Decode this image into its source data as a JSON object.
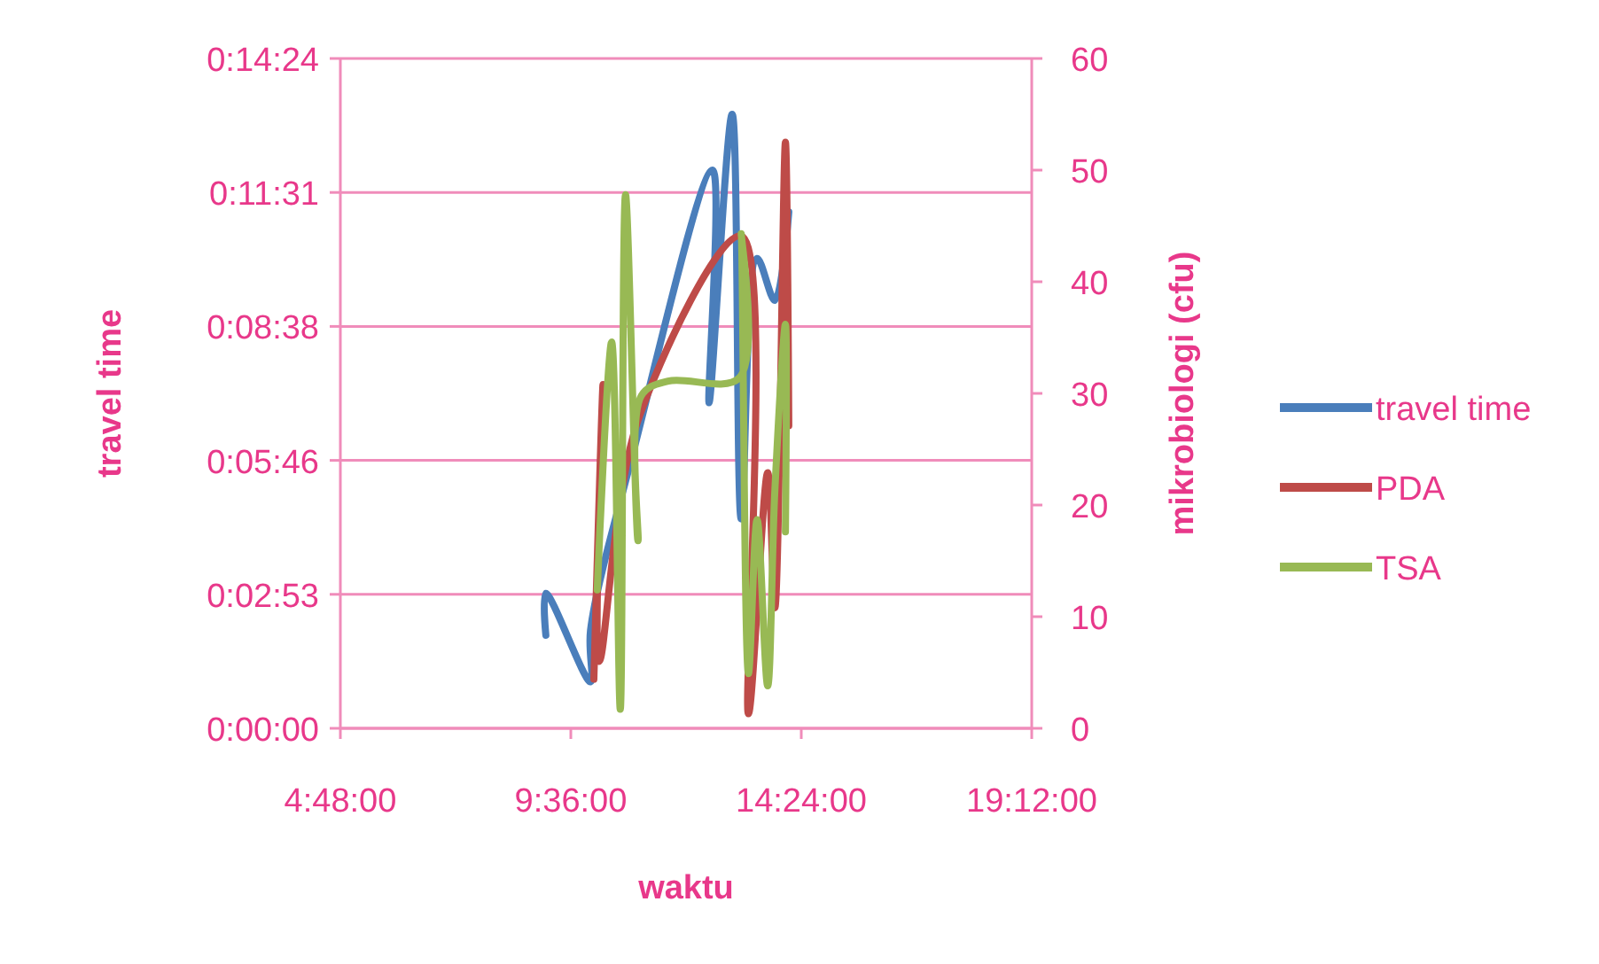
{
  "chart_data": {
    "type": "line",
    "xlabel": "waktu",
    "ylabel": "travel time",
    "y2label": "mikrobiologi (cfu)",
    "xlim": [
      4.8,
      19.2
    ],
    "xticks": [
      {
        "value": 4.8,
        "label": "4:48:00"
      },
      {
        "value": 9.6,
        "label": "9:36:00"
      },
      {
        "value": 14.4,
        "label": "14:24:00"
      },
      {
        "value": 19.2,
        "label": "19:12:00"
      }
    ],
    "ylim": [
      0,
      14.4
    ],
    "yticks": [
      {
        "value": 0,
        "label": "0:00:00"
      },
      {
        "value": 2.88,
        "label": "0:02:53"
      },
      {
        "value": 5.76,
        "label": "0:05:46"
      },
      {
        "value": 8.64,
        "label": "0:08:38"
      },
      {
        "value": 11.52,
        "label": "0:11:31"
      },
      {
        "value": 14.4,
        "label": "0:14:24"
      }
    ],
    "y2lim": [
      0,
      60
    ],
    "y2ticks": [
      0,
      10,
      20,
      30,
      40,
      50,
      60
    ],
    "grid": "y",
    "legend": "right",
    "marker": "none",
    "line_style": "solid",
    "series": [
      {
        "name": "travel time",
        "color": "#4a7ebb",
        "x": [
          9.08,
          9.08,
          10.01,
          10.01,
          10.89,
          12.55,
          12.48,
          12.96,
          13.15,
          13.48,
          13.85,
          14.14
        ],
        "values": [
          2.0,
          2.9,
          1.0,
          2.1,
          5.9,
          12.0,
          7.0,
          13.2,
          4.5,
          10.1,
          9.2,
          11.1
        ]
      },
      {
        "name": "PDA",
        "color": "#be4b48",
        "axis": "y2",
        "x": [
          10.08,
          10.27,
          10.19,
          11.0,
          13.15,
          13.3,
          13.7,
          13.85,
          14.07,
          14.14
        ],
        "values": [
          4.4,
          30.8,
          6.0,
          27.6,
          44.1,
          1.3,
          22.9,
          10.8,
          52.5,
          27.1
        ]
      },
      {
        "name": "TSA",
        "color": "#98b954",
        "axis": "y2",
        "x": [
          10.15,
          10.45,
          10.63,
          10.74,
          11.0,
          11.07,
          11.63,
          13.11,
          13.15,
          13.3,
          13.48,
          13.7,
          13.85,
          14.07,
          14.07
        ],
        "values": [
          12.4,
          34.6,
          1.7,
          47.8,
          16.8,
          29.8,
          31.1,
          31.4,
          44.3,
          4.9,
          18.7,
          3.8,
          21.3,
          36.2,
          17.6
        ]
      }
    ]
  }
}
